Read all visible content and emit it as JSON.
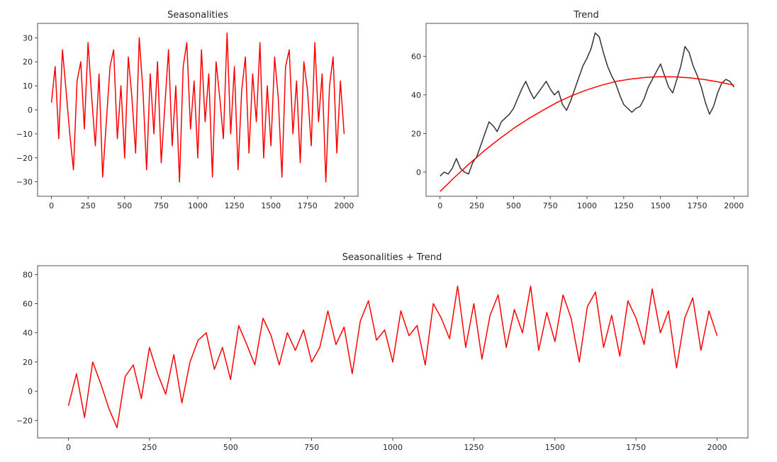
{
  "chart_data": [
    {
      "id": "seasonalities",
      "type": "line",
      "title": "Seasonalities",
      "xlabel": "",
      "ylabel": "",
      "xlim": [
        -95,
        2095
      ],
      "ylim": [
        -36,
        36
      ],
      "xticks": [
        0,
        250,
        500,
        750,
        1000,
        1250,
        1500,
        1750,
        2000
      ],
      "yticks": [
        -30,
        -20,
        -10,
        0,
        10,
        20,
        30
      ],
      "grid": false,
      "series": [
        {
          "color": "#ff0000",
          "sample_step": 25,
          "x_start": 0,
          "values": [
            3,
            18,
            -12,
            25,
            8,
            -10,
            -25,
            12,
            20,
            -8,
            28,
            5,
            -15,
            15,
            -28,
            -5,
            18,
            25,
            -12,
            10,
            -20,
            22,
            5,
            -18,
            30,
            8,
            -25,
            15,
            -10,
            20,
            -22,
            2,
            25,
            -15,
            10,
            -30,
            18,
            28,
            -8,
            12,
            -20,
            25,
            -5,
            15,
            -28,
            20,
            5,
            -12,
            32,
            -10,
            18,
            -25,
            8,
            22,
            -18,
            15,
            -5,
            28,
            -20,
            10,
            -15,
            22,
            5,
            -28,
            18,
            25,
            -10,
            12,
            -22,
            20,
            8,
            -15,
            28,
            -5,
            15,
            -30,
            10,
            22,
            -18,
            12,
            -10
          ]
        }
      ]
    },
    {
      "id": "trend",
      "type": "line",
      "title": "Trend",
      "xlabel": "",
      "ylabel": "",
      "xlim": [
        -95,
        2095
      ],
      "ylim": [
        -12.5,
        77
      ],
      "xticks": [
        0,
        250,
        500,
        750,
        1000,
        1250,
        1500,
        1750,
        2000
      ],
      "yticks": [
        0,
        20,
        40,
        60
      ],
      "grid": false,
      "series": [
        {
          "color": "#333333",
          "sample_step": 25,
          "x_start": 0,
          "values": [
            -2,
            0,
            -1,
            2,
            7,
            2,
            0,
            -1,
            5,
            8,
            14,
            20,
            26,
            24,
            21,
            26,
            28,
            30,
            33,
            38,
            43,
            47,
            42,
            38,
            41,
            44,
            47,
            43,
            40,
            42,
            35,
            32,
            37,
            43,
            49,
            55,
            59,
            64,
            72,
            70,
            62,
            55,
            50,
            46,
            40,
            35,
            33,
            31,
            33,
            34,
            38,
            44,
            48,
            52,
            56,
            50,
            44,
            41,
            48,
            55,
            65,
            62,
            55,
            50,
            44,
            36,
            30,
            34,
            41,
            46,
            48,
            47,
            44
          ],
          "x_end": 2000
        },
        {
          "color": "#ff0000",
          "sample_step": 100,
          "x_start": 0,
          "values": [
            -10,
            -2.6,
            4.4,
            11,
            17,
            22.6,
            27.6,
            32,
            36.2,
            39.7,
            42.6,
            45,
            47,
            48.2,
            49,
            49.4,
            49.3,
            48.8,
            47.9,
            46.6,
            45
          ]
        }
      ]
    },
    {
      "id": "combined",
      "type": "line",
      "title": "Seasonalities + Trend",
      "xlabel": "",
      "ylabel": "",
      "xlim": [
        -95,
        2095
      ],
      "ylim": [
        -32,
        86
      ],
      "xticks": [
        0,
        250,
        500,
        750,
        1000,
        1250,
        1500,
        1750,
        2000
      ],
      "yticks": [
        -20,
        0,
        20,
        40,
        60,
        80
      ],
      "grid": false,
      "series": [
        {
          "color": "#ff0000",
          "sample_step": 25,
          "x_start": 0,
          "values": [
            -10,
            12,
            -18,
            20,
            5,
            -12,
            -25,
            10,
            18,
            -5,
            30,
            12,
            -2,
            25,
            -8,
            20,
            35,
            40,
            15,
            30,
            8,
            45,
            32,
            18,
            50,
            38,
            18,
            40,
            28,
            42,
            20,
            30,
            55,
            32,
            44,
            12,
            48,
            62,
            35,
            42,
            20,
            55,
            38,
            45,
            18,
            60,
            50,
            36,
            72,
            30,
            60,
            22,
            52,
            66,
            30,
            56,
            40,
            72,
            28,
            54,
            34,
            66,
            50,
            20,
            58,
            68,
            30,
            52,
            24,
            62,
            50,
            32,
            70,
            40,
            55,
            16,
            50,
            64,
            28,
            55,
            38
          ]
        }
      ]
    }
  ]
}
